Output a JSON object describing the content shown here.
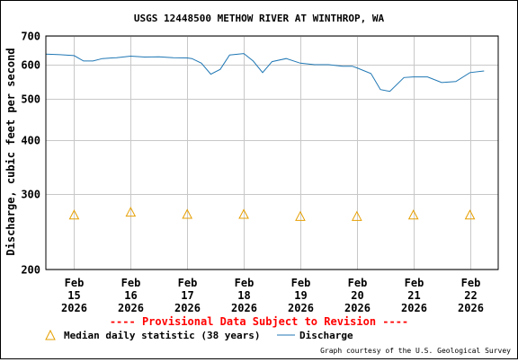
{
  "chart_data": {
    "type": "line",
    "title": "USGS 12448500 METHOW RIVER AT WINTHROP, WA",
    "ylabel": "Discharge, cubic feet per second",
    "y_scale": "log",
    "ylim": [
      200,
      700
    ],
    "y_ticks": [
      200,
      300,
      400,
      500,
      600,
      700
    ],
    "xlim": [
      "2026-02-14 12:00",
      "2026-02-22 12:00"
    ],
    "x_ticks": [
      {
        "date": "2026-02-15",
        "line1": "Feb",
        "line2": "15",
        "line3": "2026"
      },
      {
        "date": "2026-02-16",
        "line1": "Feb",
        "line2": "16",
        "line3": "2026"
      },
      {
        "date": "2026-02-17",
        "line1": "Feb",
        "line2": "17",
        "line3": "2026"
      },
      {
        "date": "2026-02-18",
        "line1": "Feb",
        "line2": "18",
        "line3": "2026"
      },
      {
        "date": "2026-02-19",
        "line1": "Feb",
        "line2": "19",
        "line3": "2026"
      },
      {
        "date": "2026-02-20",
        "line1": "Feb",
        "line2": "20",
        "line3": "2026"
      },
      {
        "date": "2026-02-21",
        "line1": "Feb",
        "line2": "21",
        "line3": "2026"
      },
      {
        "date": "2026-02-22",
        "line1": "Feb",
        "line2": "22",
        "line3": "2026"
      }
    ],
    "grid": true,
    "series": [
      {
        "name": "Discharge",
        "color": "#1f77b4",
        "x": [
          "2026-02-14 12:00",
          "2026-02-14 18:00",
          "2026-02-15 00:00",
          "2026-02-15 04:00",
          "2026-02-15 08:00",
          "2026-02-15 12:00",
          "2026-02-15 18:00",
          "2026-02-16 00:00",
          "2026-02-16 06:00",
          "2026-02-16 12:00",
          "2026-02-16 18:00",
          "2026-02-17 00:00",
          "2026-02-17 02:00",
          "2026-02-17 06:00",
          "2026-02-17 10:00",
          "2026-02-17 14:00",
          "2026-02-17 18:00",
          "2026-02-18 00:00",
          "2026-02-18 04:00",
          "2026-02-18 08:00",
          "2026-02-18 12:00",
          "2026-02-18 18:00",
          "2026-02-19 00:00",
          "2026-02-19 06:00",
          "2026-02-19 12:00",
          "2026-02-19 18:00",
          "2026-02-19 22:00",
          "2026-02-20 00:00",
          "2026-02-20 06:00",
          "2026-02-20 10:00",
          "2026-02-20 14:00",
          "2026-02-20 20:00",
          "2026-02-21 00:00",
          "2026-02-21 06:00",
          "2026-02-21 12:00",
          "2026-02-21 18:00",
          "2026-02-22 00:00",
          "2026-02-22 06:00"
        ],
        "y": [
          635,
          633,
          630,
          612,
          612,
          620,
          623,
          628,
          625,
          626,
          623,
          622,
          620,
          605,
          570,
          585,
          632,
          637,
          612,
          575,
          610,
          620,
          605,
          600,
          600,
          595,
          595,
          590,
          572,
          525,
          520,
          560,
          562,
          562,
          545,
          548,
          575,
          580
        ]
      },
      {
        "name": "Median daily statistic (38 years)",
        "color": "#e69f00",
        "marker": "triangle",
        "x": [
          "2026-02-15",
          "2026-02-16",
          "2026-02-17",
          "2026-02-18",
          "2026-02-19",
          "2026-02-20",
          "2026-02-21",
          "2026-02-22"
        ],
        "y": [
          268,
          272,
          269,
          269,
          266,
          266,
          268,
          268
        ]
      }
    ],
    "note": "---- Provisional Data Subject to Revision ----",
    "note_color": "#ff0000",
    "legend": {
      "placement": "bottom",
      "median_label": "Median daily statistic (38 years)",
      "discharge_label": "Discharge"
    },
    "credit": "Graph courtesy of the U.S. Geological Survey"
  }
}
